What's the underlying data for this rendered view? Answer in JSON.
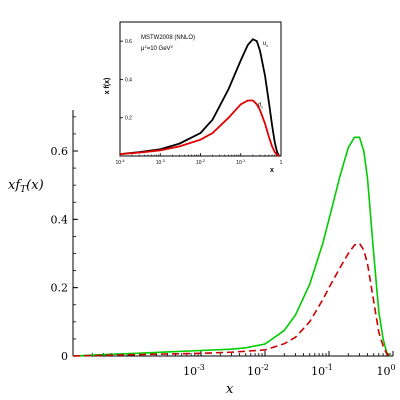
{
  "chart_data": [
    {
      "type": "line",
      "xlabel": "x",
      "ylabel": "xf_T(x)",
      "xscale": "log",
      "xlim": [
        1e-05,
        1
      ],
      "ylim": [
        0,
        0.72
      ],
      "x_ticks": [
        {
          "value": 0.001,
          "base": "10",
          "exp": "-3"
        },
        {
          "value": 0.01,
          "base": "10",
          "exp": "-2"
        },
        {
          "value": 0.1,
          "base": "10",
          "exp": "-1"
        },
        {
          "value": 1,
          "base": "10",
          "exp": "0"
        }
      ],
      "y_ticks": [
        {
          "value": 0,
          "label": "0"
        },
        {
          "value": 0.2,
          "label": "0.2"
        },
        {
          "value": 0.4,
          "label": "0.4"
        },
        {
          "value": 0.6,
          "label": "0.6"
        }
      ],
      "series": [
        {
          "color": "#00cc00",
          "dash": "solid",
          "points": [
            [
              1e-05,
              0.0
            ],
            [
              3e-05,
              0.004
            ],
            [
              0.0001,
              0.008
            ],
            [
              0.0003,
              0.012
            ],
            [
              0.001,
              0.016
            ],
            [
              0.003,
              0.02
            ],
            [
              0.005,
              0.024
            ],
            [
              0.01,
              0.035
            ],
            [
              0.02,
              0.075
            ],
            [
              0.03,
              0.12
            ],
            [
              0.05,
              0.21
            ],
            [
              0.08,
              0.33
            ],
            [
              0.1,
              0.4
            ],
            [
              0.15,
              0.53
            ],
            [
              0.2,
              0.61
            ],
            [
              0.25,
              0.64
            ],
            [
              0.3,
              0.64
            ],
            [
              0.35,
              0.6
            ],
            [
              0.4,
              0.52
            ],
            [
              0.5,
              0.3
            ],
            [
              0.6,
              0.13
            ],
            [
              0.7,
              0.05
            ],
            [
              0.8,
              0.01
            ],
            [
              0.9,
              0.0
            ]
          ]
        },
        {
          "color": "#cc0000",
          "dash": "dashed",
          "points": [
            [
              1e-05,
              0.0
            ],
            [
              0.0001,
              0.004
            ],
            [
              0.001,
              0.008
            ],
            [
              0.003,
              0.011
            ],
            [
              0.01,
              0.018
            ],
            [
              0.02,
              0.036
            ],
            [
              0.03,
              0.055
            ],
            [
              0.05,
              0.1
            ],
            [
              0.08,
              0.165
            ],
            [
              0.1,
              0.2
            ],
            [
              0.15,
              0.26
            ],
            [
              0.2,
              0.3
            ],
            [
              0.25,
              0.325
            ],
            [
              0.3,
              0.33
            ],
            [
              0.35,
              0.31
            ],
            [
              0.4,
              0.27
            ],
            [
              0.5,
              0.16
            ],
            [
              0.6,
              0.07
            ],
            [
              0.7,
              0.03
            ],
            [
              0.8,
              0.006
            ],
            [
              0.9,
              0.0
            ]
          ]
        }
      ]
    },
    {
      "type": "line",
      "title_lines": [
        "MSTW2008 (NNLO)"
      ],
      "scale_label": {
        "pre": "μ",
        "sup1": "2",
        "mid": "=10 GeV",
        "sup2": "2"
      },
      "xlabel": "x",
      "ylabel": "x f(x)",
      "xscale": "log",
      "xlim": [
        0.0001,
        1
      ],
      "ylim": [
        0,
        0.7
      ],
      "x_ticks": [
        {
          "value": 0.0001,
          "base": "10",
          "exp": "-4"
        },
        {
          "value": 0.001,
          "base": "10",
          "exp": "-3"
        },
        {
          "value": 0.01,
          "base": "10",
          "exp": "-2"
        },
        {
          "value": 0.1,
          "base": "10",
          "exp": "-1"
        },
        {
          "value": 1,
          "base": "1",
          "exp": ""
        }
      ],
      "y_ticks": [
        {
          "value": 0.2,
          "label": "0.2"
        },
        {
          "value": 0.4,
          "label": "0.4"
        },
        {
          "value": 0.6,
          "label": "0.6"
        }
      ],
      "series": [
        {
          "name": "u_v",
          "label_main": "u",
          "label_sub": "v",
          "color": "#000000",
          "points": [
            [
              0.0001,
              0.01
            ],
            [
              0.0003,
              0.02
            ],
            [
              0.001,
              0.035
            ],
            [
              0.003,
              0.065
            ],
            [
              0.01,
              0.12
            ],
            [
              0.02,
              0.19
            ],
            [
              0.05,
              0.35
            ],
            [
              0.1,
              0.5
            ],
            [
              0.15,
              0.58
            ],
            [
              0.2,
              0.61
            ],
            [
              0.25,
              0.6
            ],
            [
              0.3,
              0.55
            ],
            [
              0.4,
              0.42
            ],
            [
              0.5,
              0.28
            ],
            [
              0.6,
              0.16
            ],
            [
              0.7,
              0.07
            ],
            [
              0.8,
              0.02
            ],
            [
              0.9,
              0.0
            ]
          ]
        },
        {
          "name": "d_v",
          "label_main": "d",
          "label_sub": "v",
          "color": "#e00000",
          "points": [
            [
              0.0001,
              0.01
            ],
            [
              0.0003,
              0.018
            ],
            [
              0.001,
              0.03
            ],
            [
              0.003,
              0.05
            ],
            [
              0.01,
              0.085
            ],
            [
              0.02,
              0.12
            ],
            [
              0.05,
              0.2
            ],
            [
              0.1,
              0.27
            ],
            [
              0.15,
              0.29
            ],
            [
              0.2,
              0.29
            ],
            [
              0.25,
              0.27
            ],
            [
              0.3,
              0.24
            ],
            [
              0.4,
              0.17
            ],
            [
              0.5,
              0.1
            ],
            [
              0.6,
              0.05
            ],
            [
              0.7,
              0.02
            ],
            [
              0.8,
              0.005
            ],
            [
              0.9,
              0.0
            ]
          ]
        }
      ]
    }
  ]
}
